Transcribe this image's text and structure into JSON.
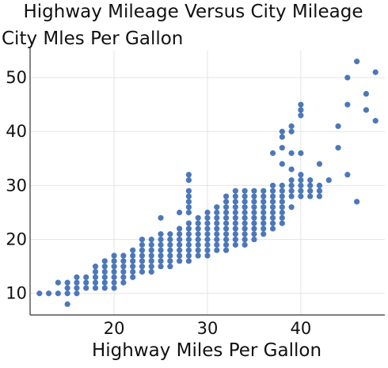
{
  "chart_data": {
    "type": "scatter",
    "title": "Highway Mileage Versus City Mileage",
    "ylabel": "City Mles Per Gallon",
    "xlabel": "Highway Miles Per Gallon",
    "xlim": [
      11,
      49
    ],
    "ylim": [
      6,
      55
    ],
    "xticks": [
      20,
      30,
      40
    ],
    "yticks": [
      10,
      20,
      30,
      40,
      50
    ],
    "grid": true,
    "marker_color": "#4c78b9",
    "points": [
      [
        12,
        10
      ],
      [
        13,
        10
      ],
      [
        14,
        10
      ],
      [
        14,
        12
      ],
      [
        15,
        8
      ],
      [
        15,
        10
      ],
      [
        15,
        11
      ],
      [
        15,
        12
      ],
      [
        16,
        10
      ],
      [
        16,
        11
      ],
      [
        16,
        12
      ],
      [
        16,
        13
      ],
      [
        17,
        11
      ],
      [
        17,
        12
      ],
      [
        17,
        13
      ],
      [
        18,
        11
      ],
      [
        18,
        12
      ],
      [
        18,
        13
      ],
      [
        18,
        14
      ],
      [
        18,
        15
      ],
      [
        19,
        11
      ],
      [
        19,
        12
      ],
      [
        19,
        13
      ],
      [
        19,
        14
      ],
      [
        19,
        15
      ],
      [
        19,
        16
      ],
      [
        20,
        11
      ],
      [
        20,
        12
      ],
      [
        20,
        13
      ],
      [
        20,
        14
      ],
      [
        20,
        15
      ],
      [
        20,
        16
      ],
      [
        20,
        17
      ],
      [
        21,
        12
      ],
      [
        21,
        13
      ],
      [
        21,
        14
      ],
      [
        21,
        15
      ],
      [
        21,
        16
      ],
      [
        21,
        17
      ],
      [
        22,
        13
      ],
      [
        22,
        14
      ],
      [
        22,
        15
      ],
      [
        22,
        16
      ],
      [
        22,
        17
      ],
      [
        22,
        18
      ],
      [
        23,
        14
      ],
      [
        23,
        15
      ],
      [
        23,
        16
      ],
      [
        23,
        17
      ],
      [
        23,
        18
      ],
      [
        23,
        19
      ],
      [
        23,
        20
      ],
      [
        24,
        14
      ],
      [
        24,
        15
      ],
      [
        24,
        16
      ],
      [
        24,
        17
      ],
      [
        24,
        18
      ],
      [
        24,
        19
      ],
      [
        24,
        20
      ],
      [
        25,
        15
      ],
      [
        25,
        16
      ],
      [
        25,
        17
      ],
      [
        25,
        18
      ],
      [
        25,
        19
      ],
      [
        25,
        20
      ],
      [
        25,
        21
      ],
      [
        25,
        24
      ],
      [
        26,
        15
      ],
      [
        26,
        16
      ],
      [
        26,
        17
      ],
      [
        26,
        18
      ],
      [
        26,
        19
      ],
      [
        26,
        20
      ],
      [
        26,
        21
      ],
      [
        27,
        16
      ],
      [
        27,
        17
      ],
      [
        27,
        18
      ],
      [
        27,
        19
      ],
      [
        27,
        20
      ],
      [
        27,
        21
      ],
      [
        27,
        22
      ],
      [
        27,
        25
      ],
      [
        28,
        16
      ],
      [
        28,
        17
      ],
      [
        28,
        18
      ],
      [
        28,
        19
      ],
      [
        28,
        20
      ],
      [
        28,
        21
      ],
      [
        28,
        22
      ],
      [
        28,
        23
      ],
      [
        28,
        25
      ],
      [
        28,
        26
      ],
      [
        28,
        27
      ],
      [
        28,
        28
      ],
      [
        28,
        29
      ],
      [
        28,
        31
      ],
      [
        28,
        32
      ],
      [
        29,
        17
      ],
      [
        29,
        18
      ],
      [
        29,
        19
      ],
      [
        29,
        20
      ],
      [
        29,
        21
      ],
      [
        29,
        22
      ],
      [
        29,
        23
      ],
      [
        29,
        24
      ],
      [
        30,
        17
      ],
      [
        30,
        18
      ],
      [
        30,
        19
      ],
      [
        30,
        20
      ],
      [
        30,
        21
      ],
      [
        30,
        22
      ],
      [
        30,
        23
      ],
      [
        30,
        24
      ],
      [
        30,
        25
      ],
      [
        31,
        18
      ],
      [
        31,
        19
      ],
      [
        31,
        20
      ],
      [
        31,
        21
      ],
      [
        31,
        22
      ],
      [
        31,
        23
      ],
      [
        31,
        24
      ],
      [
        31,
        25
      ],
      [
        31,
        26
      ],
      [
        32,
        18
      ],
      [
        32,
        19
      ],
      [
        32,
        20
      ],
      [
        32,
        21
      ],
      [
        32,
        22
      ],
      [
        32,
        23
      ],
      [
        32,
        24
      ],
      [
        32,
        25
      ],
      [
        32,
        26
      ],
      [
        32,
        27
      ],
      [
        32,
        28
      ],
      [
        33,
        19
      ],
      [
        33,
        20
      ],
      [
        33,
        21
      ],
      [
        33,
        22
      ],
      [
        33,
        23
      ],
      [
        33,
        24
      ],
      [
        33,
        25
      ],
      [
        33,
        26
      ],
      [
        33,
        27
      ],
      [
        33,
        28
      ],
      [
        33,
        29
      ],
      [
        34,
        19
      ],
      [
        34,
        20
      ],
      [
        34,
        21
      ],
      [
        34,
        22
      ],
      [
        34,
        23
      ],
      [
        34,
        24
      ],
      [
        34,
        25
      ],
      [
        34,
        26
      ],
      [
        34,
        27
      ],
      [
        34,
        28
      ],
      [
        34,
        29
      ],
      [
        35,
        20
      ],
      [
        35,
        21
      ],
      [
        35,
        22
      ],
      [
        35,
        23
      ],
      [
        35,
        24
      ],
      [
        35,
        25
      ],
      [
        35,
        26
      ],
      [
        35,
        27
      ],
      [
        35,
        28
      ],
      [
        35,
        29
      ],
      [
        36,
        21
      ],
      [
        36,
        22
      ],
      [
        36,
        23
      ],
      [
        36,
        24
      ],
      [
        36,
        25
      ],
      [
        36,
        26
      ],
      [
        36,
        27
      ],
      [
        36,
        28
      ],
      [
        36,
        29
      ],
      [
        37,
        22
      ],
      [
        37,
        23
      ],
      [
        37,
        24
      ],
      [
        37,
        25
      ],
      [
        37,
        26
      ],
      [
        37,
        27
      ],
      [
        37,
        28
      ],
      [
        37,
        29
      ],
      [
        37,
        30
      ],
      [
        37,
        36
      ],
      [
        38,
        23
      ],
      [
        38,
        24
      ],
      [
        38,
        25
      ],
      [
        38,
        26
      ],
      [
        38,
        27
      ],
      [
        38,
        28
      ],
      [
        38,
        29
      ],
      [
        38,
        30
      ],
      [
        38,
        34
      ],
      [
        38,
        37
      ],
      [
        38,
        39
      ],
      [
        38,
        40
      ],
      [
        39,
        26
      ],
      [
        39,
        28
      ],
      [
        39,
        29
      ],
      [
        39,
        30
      ],
      [
        39,
        31
      ],
      [
        39,
        33
      ],
      [
        39,
        36
      ],
      [
        39,
        40
      ],
      [
        39,
        41
      ],
      [
        40,
        28
      ],
      [
        40,
        29
      ],
      [
        40,
        30
      ],
      [
        40,
        31
      ],
      [
        40,
        32
      ],
      [
        40,
        36
      ],
      [
        40,
        43
      ],
      [
        40,
        44
      ],
      [
        40,
        45
      ],
      [
        41,
        28
      ],
      [
        41,
        29
      ],
      [
        41,
        30
      ],
      [
        41,
        31
      ],
      [
        42,
        28
      ],
      [
        42,
        29
      ],
      [
        42,
        30
      ],
      [
        42,
        34
      ],
      [
        43,
        31
      ],
      [
        44,
        37
      ],
      [
        44,
        41
      ],
      [
        45,
        32
      ],
      [
        45,
        45
      ],
      [
        45,
        50
      ],
      [
        46,
        27
      ],
      [
        46,
        53
      ],
      [
        47,
        44
      ],
      [
        47,
        47
      ],
      [
        48,
        42
      ],
      [
        48,
        51
      ]
    ]
  }
}
